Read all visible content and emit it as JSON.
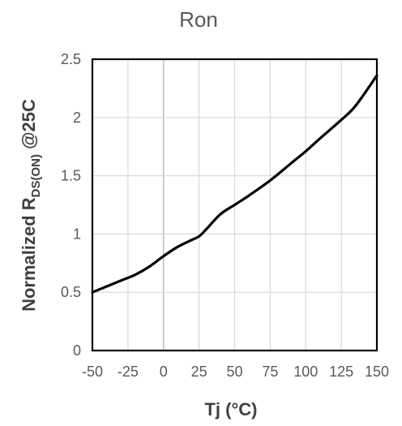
{
  "chart_data": {
    "type": "line",
    "title": "Ron",
    "xlabel": "Tj (°C)",
    "ylabel": {
      "prefix": "Normalized R",
      "subscript": "DS(ON)",
      "suffix": " @25C"
    },
    "xlim": [
      -50,
      150
    ],
    "ylim": [
      0,
      2.5
    ],
    "xticks": [
      -50,
      -25,
      0,
      25,
      50,
      75,
      100,
      125,
      150
    ],
    "yticks": [
      0,
      0.5,
      1,
      1.5,
      2,
      2.5
    ],
    "x_tick_labels": [
      "-50",
      "-25",
      "0",
      "25",
      "50",
      "75",
      "100",
      "125",
      "150"
    ],
    "y_tick_labels": [
      "0",
      "0.5",
      "1",
      "1.5",
      "2",
      "2.5"
    ],
    "grid": true,
    "series": [
      {
        "x": [
          -50,
          -40,
          -30,
          -20,
          -10,
          0,
          10,
          20,
          25,
          30,
          40,
          50,
          60,
          75,
          90,
          100,
          110,
          125,
          135,
          150
        ],
        "y": [
          0.5,
          0.55,
          0.6,
          0.65,
          0.72,
          0.81,
          0.89,
          0.95,
          0.98,
          1.04,
          1.17,
          1.25,
          1.33,
          1.46,
          1.61,
          1.71,
          1.82,
          1.98,
          2.1,
          2.36
        ],
        "color": "#000000"
      }
    ]
  }
}
